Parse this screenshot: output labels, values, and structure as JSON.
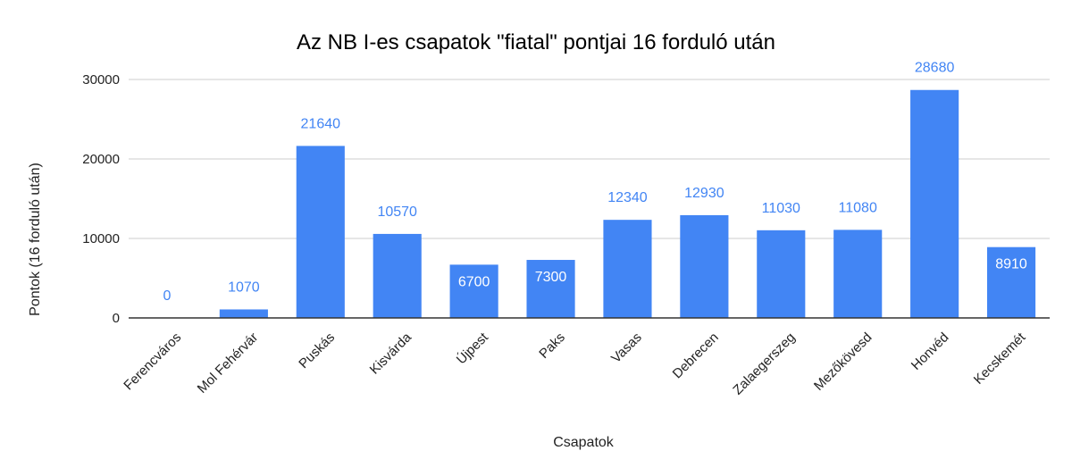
{
  "chart_data": {
    "type": "bar",
    "title": "Az NB I-es csapatok \"fiatal\" pontjai 16 forduló után",
    "xlabel": "Csapatok",
    "ylabel": "Pontok (16 forduló után)",
    "categories": [
      "Ferencváros",
      "Mol Fehérvár",
      "Puskás",
      "Kisvárda",
      "Újpest",
      "Paks",
      "Vasas",
      "Debrecen",
      "Zalaegerszeg",
      "Mezőkövesd",
      "Honvéd",
      "Kecskemét"
    ],
    "values": [
      0,
      1070,
      21640,
      10570,
      6700,
      7300,
      12340,
      12930,
      11030,
      11080,
      28680,
      8910
    ],
    "ylim": [
      0,
      30000
    ],
    "yticks": [
      0,
      10000,
      20000,
      30000
    ],
    "grid": true,
    "legend": "none",
    "colors": {
      "bar": "#4285f4",
      "label": "#4285f4",
      "label_inside": "#ffffff",
      "grid": "#cccccc",
      "axis": "#333333"
    }
  }
}
